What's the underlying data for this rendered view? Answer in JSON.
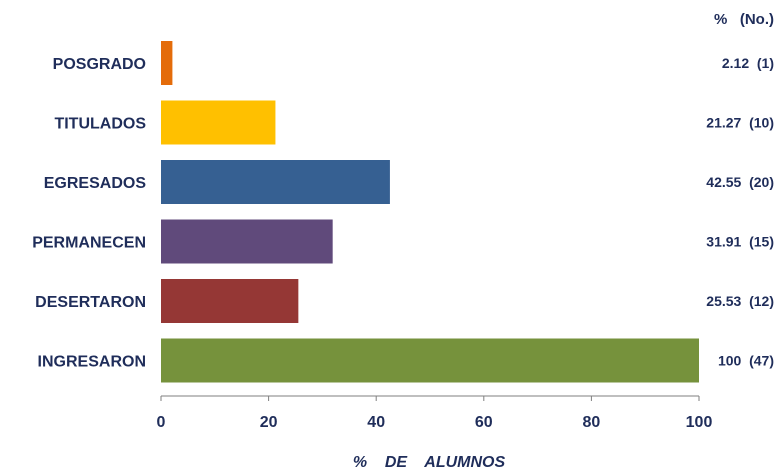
{
  "chart_data": {
    "type": "bar",
    "orientation": "horizontal",
    "categories": [
      "POSGRADO",
      "TITULADOS",
      "EGRESADOS",
      "PERMANECEN",
      "DESERTARON",
      "INGRESARON"
    ],
    "values": [
      2.12,
      21.27,
      42.55,
      31.91,
      25.53,
      100
    ],
    "value_labels": [
      "2.12  (1)",
      "21.27  (10)",
      "42.55  (20)",
      "31.91  (15)",
      "25.53  (12)",
      "100  (47)"
    ],
    "colors": [
      "#e46c0a",
      "#ffc000",
      "#366092",
      "#604a7b",
      "#953735",
      "#76923c"
    ],
    "value_header": "%   (No.)",
    "xlabel": "%    DE    ALUMNOS",
    "xlim": [
      0,
      100
    ],
    "xticks": [
      0,
      20,
      40,
      60,
      80,
      100
    ],
    "xtick_labels": [
      "0",
      "20",
      "40",
      "60",
      "80",
      "100"
    ],
    "grid": false,
    "legend": "none"
  }
}
